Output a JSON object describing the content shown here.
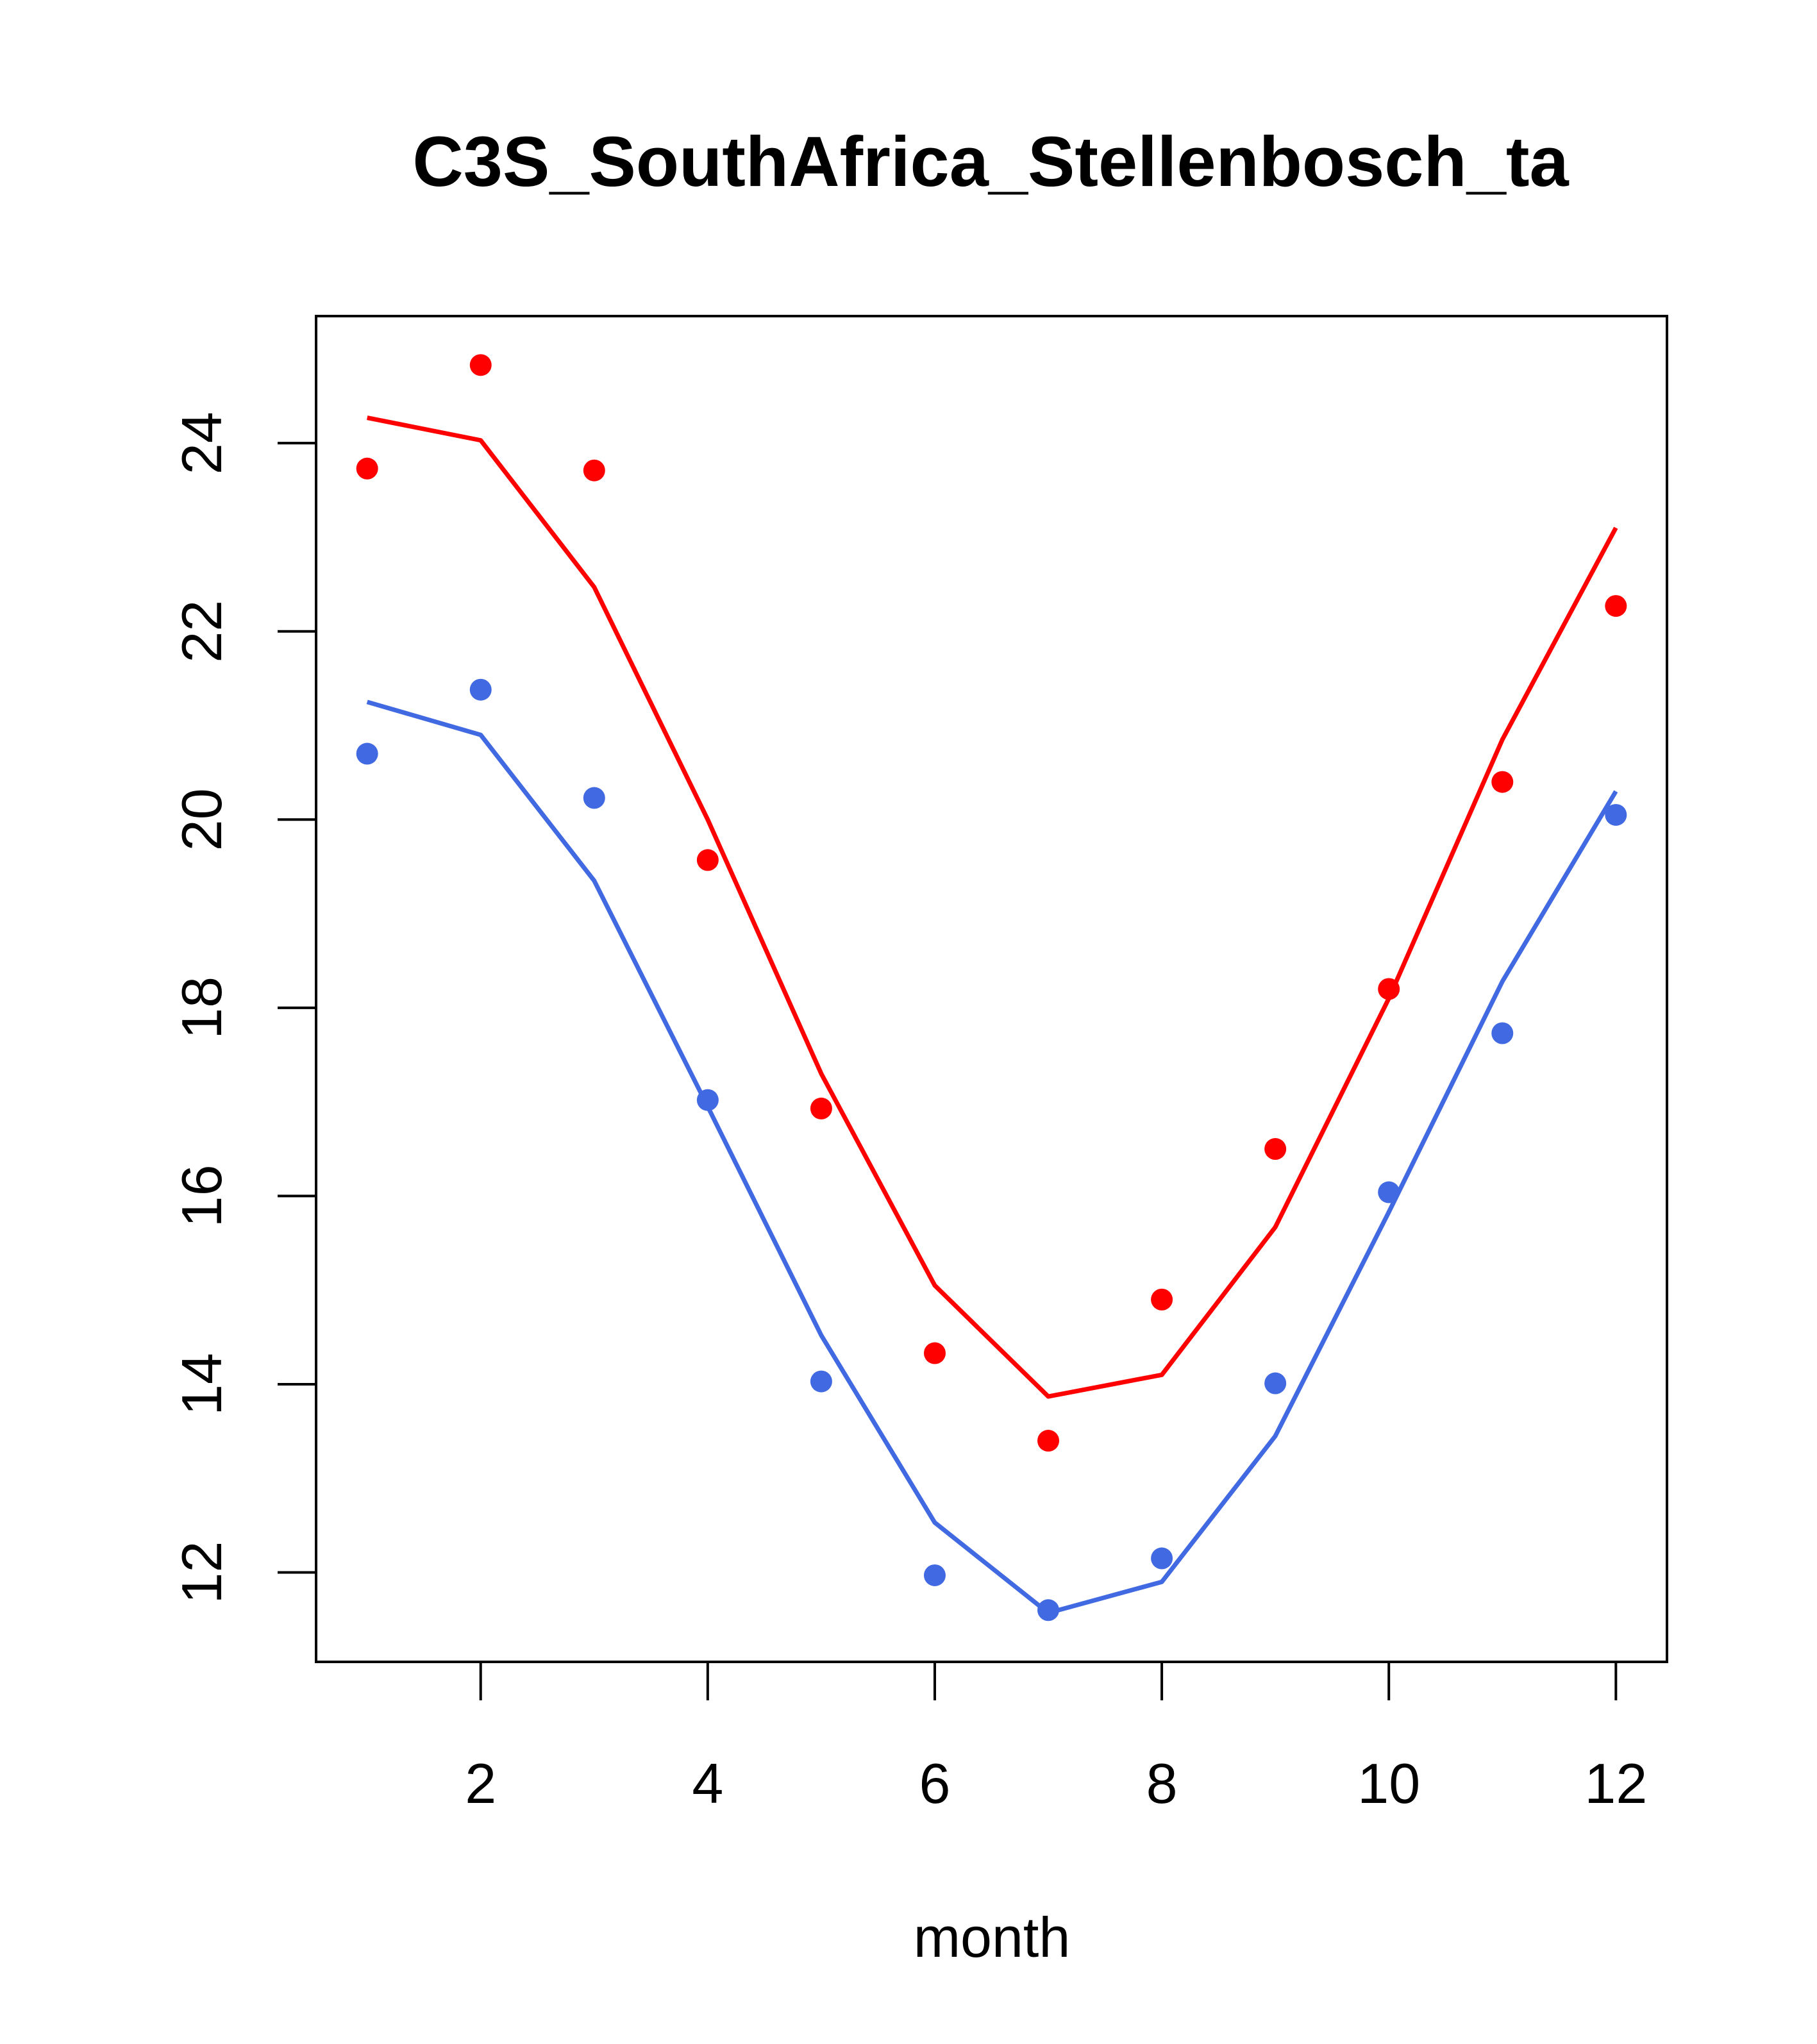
{
  "chart_data": {
    "type": "line",
    "title": "C3S_SouthAfrica_Stellenbosch_ta",
    "xlabel": "month",
    "ylabel": "",
    "xlim": [
      0.55,
      12.45
    ],
    "ylim": [
      11.05,
      25.35
    ],
    "xticks": [
      2,
      4,
      6,
      8,
      10,
      12
    ],
    "yticks": [
      12,
      14,
      16,
      18,
      20,
      22,
      24
    ],
    "grid": false,
    "legend": "none",
    "x": [
      1,
      2,
      3,
      4,
      5,
      6,
      7,
      8,
      9,
      10,
      11,
      12
    ],
    "series": [
      {
        "name": "red-line",
        "kind": "line",
        "color": "#ff0000",
        "values": [
          24.27,
          24.03,
          22.47,
          20.0,
          17.3,
          15.05,
          13.87,
          14.1,
          15.67,
          18.1,
          20.85,
          23.1
        ]
      },
      {
        "name": "red-points",
        "kind": "points",
        "color": "#ff0000",
        "values": [
          23.73,
          24.83,
          23.71,
          19.57,
          16.93,
          14.33,
          13.4,
          14.9,
          16.5,
          18.2,
          20.4,
          22.27
        ]
      },
      {
        "name": "blue-line",
        "kind": "line",
        "color": "#4169e1",
        "values": [
          21.25,
          20.9,
          19.35,
          16.95,
          14.52,
          12.53,
          11.57,
          11.9,
          13.45,
          15.83,
          18.28,
          20.3
        ]
      },
      {
        "name": "blue-points",
        "kind": "points",
        "color": "#4169e1",
        "values": [
          20.7,
          21.38,
          20.23,
          17.02,
          14.03,
          11.97,
          11.6,
          12.15,
          14.01,
          16.04,
          17.73,
          20.05
        ]
      }
    ]
  }
}
